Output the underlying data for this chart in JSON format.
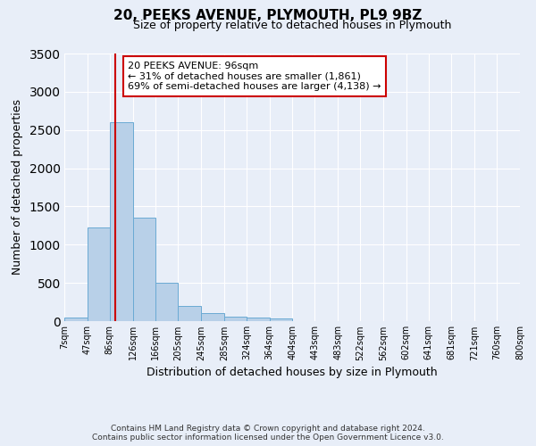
{
  "title": "20, PEEKS AVENUE, PLYMOUTH, PL9 9BZ",
  "subtitle": "Size of property relative to detached houses in Plymouth",
  "xlabel": "Distribution of detached houses by size in Plymouth",
  "ylabel": "Number of detached properties",
  "footer_line1": "Contains HM Land Registry data © Crown copyright and database right 2024.",
  "footer_line2": "Contains public sector information licensed under the Open Government Licence v3.0.",
  "bin_edges": [
    7,
    47,
    86,
    126,
    166,
    205,
    245,
    285,
    324,
    364,
    404,
    443,
    483,
    522,
    562,
    602,
    641,
    681,
    721,
    760,
    800
  ],
  "bin_labels": [
    "7sqm",
    "47sqm",
    "86sqm",
    "126sqm",
    "166sqm",
    "205sqm",
    "245sqm",
    "285sqm",
    "324sqm",
    "364sqm",
    "404sqm",
    "443sqm",
    "483sqm",
    "522sqm",
    "562sqm",
    "602sqm",
    "641sqm",
    "681sqm",
    "721sqm",
    "760sqm",
    "800sqm"
  ],
  "counts": [
    50,
    1230,
    2600,
    1350,
    500,
    200,
    110,
    55,
    50,
    30,
    5,
    5,
    0,
    0,
    0,
    0,
    0,
    0,
    0,
    0
  ],
  "bar_color": "#b8d0e8",
  "bar_edge_color": "#6aaad4",
  "property_line_x": 96,
  "property_line_color": "#cc0000",
  "annotation_line1": "20 PEEKS AVENUE: 96sqm",
  "annotation_line2": "← 31% of detached houses are smaller (1,861)",
  "annotation_line3": "69% of semi-detached houses are larger (4,138) →",
  "annotation_box_color": "#ffffff",
  "annotation_box_edge_color": "#cc0000",
  "ylim": [
    0,
    3500
  ],
  "yticks": [
    0,
    500,
    1000,
    1500,
    2000,
    2500,
    3000,
    3500
  ],
  "background_color": "#e8eef8",
  "plot_bg_color": "#e8eef8",
  "grid_color": "#ffffff"
}
